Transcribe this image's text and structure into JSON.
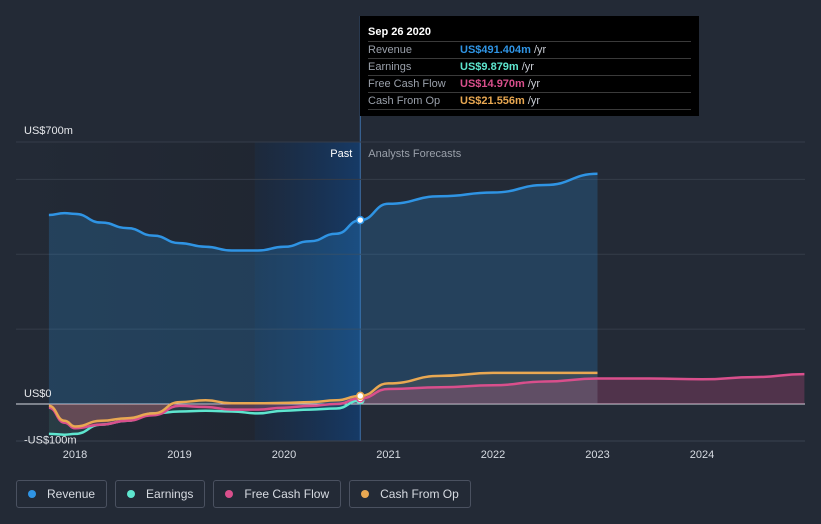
{
  "chart_data": {
    "type": "area",
    "y_top_label": "US$700m",
    "y_zero_label": "US$0",
    "y_neg_label": "-US$100m",
    "ylim": [
      -100,
      700
    ],
    "x_ticks": [
      "2018",
      "2019",
      "2020",
      "2021",
      "2022",
      "2023",
      "2024"
    ],
    "past_label": "Past",
    "forecast_label": "Analysts Forecasts",
    "series": [
      {
        "name": "Revenue",
        "color": "#2f94e4",
        "points": [
          [
            2017.75,
            505
          ],
          [
            2017.9,
            510
          ],
          [
            2018.0,
            508
          ],
          [
            2018.25,
            485
          ],
          [
            2018.5,
            470
          ],
          [
            2018.75,
            450
          ],
          [
            2019.0,
            430
          ],
          [
            2019.25,
            420
          ],
          [
            2019.5,
            410
          ],
          [
            2019.75,
            410
          ],
          [
            2020.0,
            420
          ],
          [
            2020.25,
            435
          ],
          [
            2020.5,
            455
          ],
          [
            2020.73,
            491.4
          ]
        ],
        "forecast": [
          [
            2020.73,
            491.4
          ],
          [
            2021.0,
            535
          ],
          [
            2021.5,
            555
          ],
          [
            2022.0,
            565
          ],
          [
            2022.5,
            585
          ],
          [
            2023.0,
            615
          ]
        ]
      },
      {
        "name": "Earnings",
        "color": "#5ee6cf",
        "points": [
          [
            2017.75,
            -80
          ],
          [
            2017.9,
            -82
          ],
          [
            2018.0,
            -80
          ],
          [
            2018.25,
            -55
          ],
          [
            2018.5,
            -45
          ],
          [
            2018.75,
            -25
          ],
          [
            2019.0,
            -20
          ],
          [
            2019.25,
            -18
          ],
          [
            2019.5,
            -20
          ],
          [
            2019.75,
            -25
          ],
          [
            2020.0,
            -18
          ],
          [
            2020.25,
            -15
          ],
          [
            2020.5,
            -12
          ],
          [
            2020.73,
            9.879
          ]
        ],
        "forecast": []
      },
      {
        "name": "Free Cash Flow",
        "color": "#d94f8c",
        "points": [
          [
            2017.75,
            -10
          ],
          [
            2017.9,
            -50
          ],
          [
            2018.0,
            -65
          ],
          [
            2018.25,
            -55
          ],
          [
            2018.5,
            -45
          ],
          [
            2018.75,
            -30
          ],
          [
            2019.0,
            -5
          ],
          [
            2019.25,
            -8
          ],
          [
            2019.5,
            -15
          ],
          [
            2019.75,
            -15
          ],
          [
            2020.0,
            -10
          ],
          [
            2020.25,
            -5
          ],
          [
            2020.5,
            0
          ],
          [
            2020.73,
            14.97
          ]
        ],
        "forecast": [
          [
            2020.73,
            14.97
          ],
          [
            2021.0,
            40
          ],
          [
            2021.5,
            45
          ],
          [
            2022.0,
            50
          ],
          [
            2022.5,
            60
          ],
          [
            2023.0,
            68
          ],
          [
            2023.5,
            68
          ],
          [
            2024.0,
            66
          ],
          [
            2024.5,
            72
          ],
          [
            2024.98,
            80
          ]
        ]
      },
      {
        "name": "Cash From Op",
        "color": "#e9a852",
        "points": [
          [
            2017.75,
            -5
          ],
          [
            2017.9,
            -45
          ],
          [
            2018.0,
            -60
          ],
          [
            2018.25,
            -45
          ],
          [
            2018.5,
            -38
          ],
          [
            2018.75,
            -25
          ],
          [
            2019.0,
            5
          ],
          [
            2019.25,
            10
          ],
          [
            2019.5,
            2
          ],
          [
            2019.75,
            2
          ],
          [
            2020.0,
            3
          ],
          [
            2020.25,
            5
          ],
          [
            2020.5,
            10
          ],
          [
            2020.73,
            21.556
          ]
        ],
        "forecast": [
          [
            2020.73,
            21.556
          ],
          [
            2021.0,
            55
          ],
          [
            2021.5,
            75
          ],
          [
            2022.0,
            83
          ],
          [
            2022.5,
            83
          ],
          [
            2023.0,
            83
          ]
        ]
      }
    ]
  },
  "tooltip": {
    "date": "Sep 26 2020",
    "rows": [
      {
        "name": "Revenue",
        "value": "US$491.404m",
        "unit": "/yr",
        "color": "#2f94e4"
      },
      {
        "name": "Earnings",
        "value": "US$9.879m",
        "unit": "/yr",
        "color": "#5ee6cf"
      },
      {
        "name": "Free Cash Flow",
        "value": "US$14.970m",
        "unit": "/yr",
        "color": "#d94f8c"
      },
      {
        "name": "Cash From Op",
        "value": "US$21.556m",
        "unit": "/yr",
        "color": "#e9a852"
      }
    ]
  },
  "legend": [
    {
      "label": "Revenue",
      "color": "#2f94e4"
    },
    {
      "label": "Earnings",
      "color": "#5ee6cf"
    },
    {
      "label": "Free Cash Flow",
      "color": "#d94f8c"
    },
    {
      "label": "Cash From Op",
      "color": "#e9a852"
    }
  ]
}
